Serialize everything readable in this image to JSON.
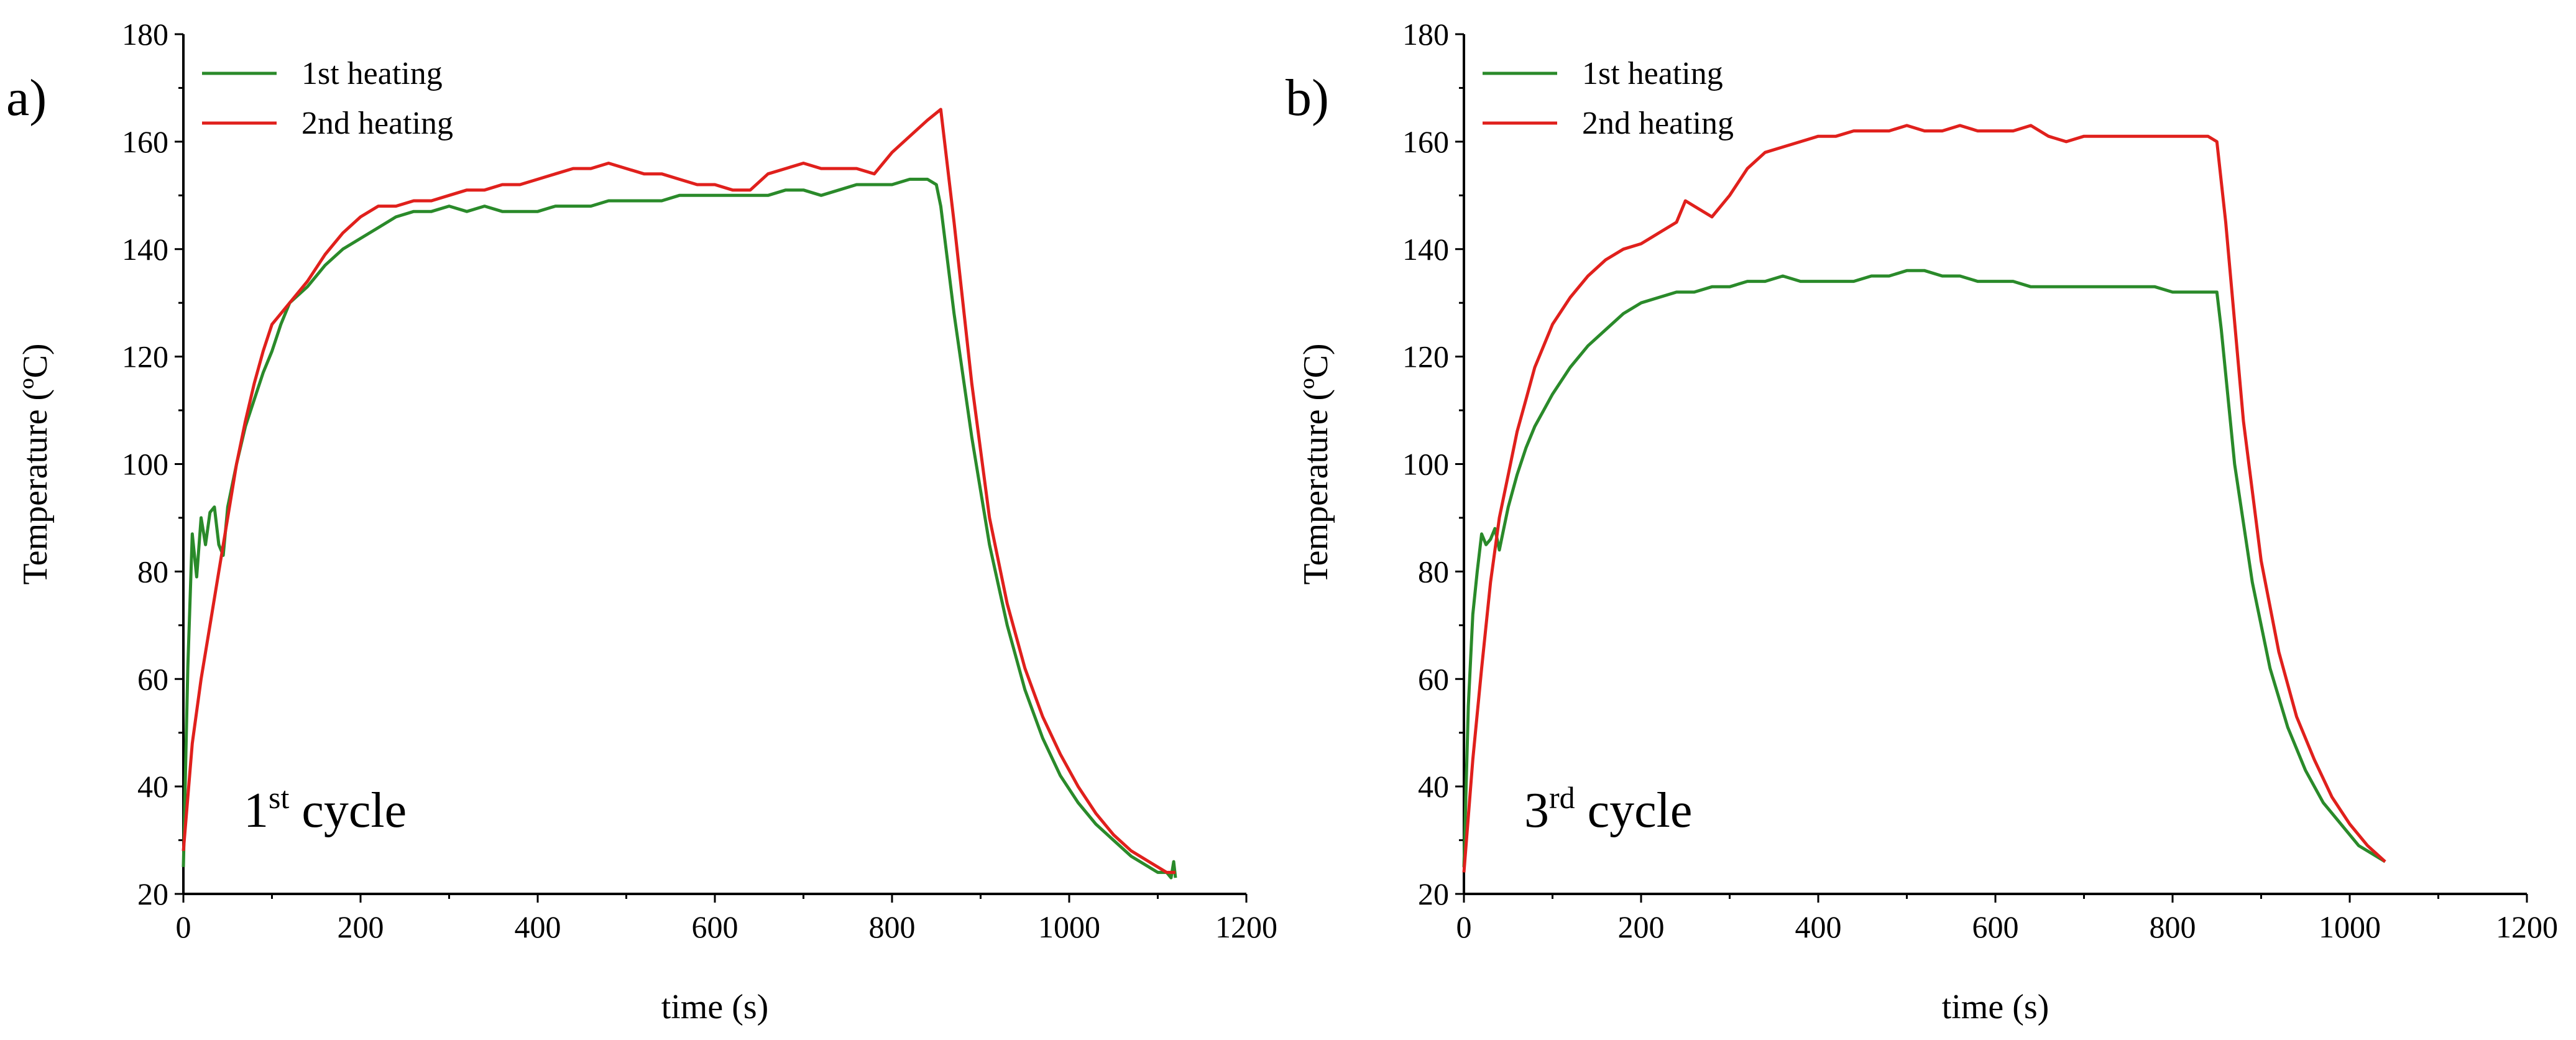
{
  "figure": {
    "panels": [
      {
        "label": "a)",
        "cycle_number": "1",
        "cycle_sup": "st",
        "cycle_word": " cycle"
      },
      {
        "label": "b)",
        "cycle_number": "3",
        "cycle_sup": "rd",
        "cycle_word": " cycle"
      }
    ]
  },
  "chart_data": [
    {
      "type": "line",
      "panel": "a)",
      "annotation": "1st cycle",
      "xlabel": "time (s)",
      "ylabel": "Temperature (ºC)",
      "xlim": [
        0,
        1200
      ],
      "ylim": [
        20,
        180
      ],
      "xticks": [
        0,
        200,
        400,
        600,
        800,
        1000,
        1200
      ],
      "yticks": [
        20,
        40,
        60,
        80,
        100,
        120,
        140,
        160,
        180
      ],
      "legend": "top-left",
      "series": [
        {
          "name": "1st heating",
          "color": "#2a8a2a",
          "x": [
            0,
            5,
            10,
            15,
            20,
            25,
            30,
            35,
            40,
            45,
            50,
            60,
            70,
            80,
            90,
            100,
            110,
            120,
            140,
            160,
            180,
            200,
            220,
            240,
            260,
            280,
            300,
            320,
            340,
            360,
            380,
            400,
            420,
            440,
            460,
            480,
            500,
            520,
            540,
            560,
            580,
            600,
            620,
            640,
            660,
            680,
            700,
            720,
            740,
            760,
            780,
            800,
            820,
            840,
            850,
            855,
            870,
            890,
            910,
            930,
            950,
            970,
            990,
            1010,
            1030,
            1050,
            1070,
            1090,
            1100,
            1110,
            1115,
            1118,
            1120
          ],
          "y": [
            25,
            62,
            87,
            79,
            90,
            85,
            91,
            92,
            85,
            83,
            92,
            100,
            107,
            112,
            117,
            121,
            126,
            130,
            133,
            137,
            140,
            142,
            144,
            146,
            147,
            147,
            148,
            147,
            148,
            147,
            147,
            147,
            148,
            148,
            148,
            149,
            149,
            149,
            149,
            150,
            150,
            150,
            150,
            150,
            150,
            151,
            151,
            150,
            151,
            152,
            152,
            152,
            153,
            153,
            152,
            148,
            128,
            105,
            85,
            70,
            58,
            49,
            42,
            37,
            33,
            30,
            27,
            25,
            24,
            24,
            23,
            26,
            23
          ]
        },
        {
          "name": "2nd heating",
          "color": "#e0201c",
          "x": [
            0,
            10,
            20,
            30,
            40,
            50,
            60,
            70,
            80,
            90,
            100,
            110,
            120,
            140,
            160,
            180,
            200,
            220,
            240,
            260,
            280,
            300,
            320,
            340,
            360,
            380,
            400,
            420,
            440,
            460,
            480,
            500,
            520,
            540,
            560,
            580,
            600,
            620,
            640,
            660,
            680,
            700,
            720,
            740,
            760,
            780,
            800,
            820,
            840,
            855,
            870,
            890,
            910,
            930,
            950,
            970,
            990,
            1010,
            1030,
            1050,
            1070,
            1090,
            1110,
            1120
          ],
          "y": [
            28,
            48,
            60,
            70,
            80,
            90,
            100,
            108,
            115,
            121,
            126,
            128,
            130,
            134,
            139,
            143,
            146,
            148,
            148,
            149,
            149,
            150,
            151,
            151,
            152,
            152,
            153,
            154,
            155,
            155,
            156,
            155,
            154,
            154,
            153,
            152,
            152,
            151,
            151,
            154,
            155,
            156,
            155,
            155,
            155,
            154,
            158,
            161,
            164,
            166,
            145,
            115,
            90,
            74,
            62,
            53,
            46,
            40,
            35,
            31,
            28,
            26,
            24,
            24
          ]
        }
      ]
    },
    {
      "type": "line",
      "panel": "b)",
      "annotation": "3rd cycle",
      "xlabel": "time (s)",
      "ylabel": "Temperature (ºC)",
      "xlim": [
        0,
        1200
      ],
      "ylim": [
        20,
        180
      ],
      "xticks": [
        0,
        200,
        400,
        600,
        800,
        1000,
        1200
      ],
      "yticks": [
        20,
        40,
        60,
        80,
        100,
        120,
        140,
        160,
        180
      ],
      "legend": "top-left",
      "series": [
        {
          "name": "1st heating",
          "color": "#2a8a2a",
          "x": [
            0,
            5,
            10,
            15,
            20,
            25,
            30,
            35,
            40,
            45,
            50,
            60,
            70,
            80,
            90,
            100,
            120,
            140,
            160,
            180,
            200,
            220,
            240,
            260,
            280,
            300,
            320,
            340,
            360,
            380,
            400,
            420,
            440,
            460,
            480,
            500,
            520,
            540,
            560,
            580,
            600,
            620,
            640,
            660,
            680,
            700,
            720,
            740,
            760,
            780,
            800,
            820,
            840,
            850,
            855,
            870,
            890,
            910,
            930,
            950,
            970,
            990,
            1010,
            1030,
            1040
          ],
          "y": [
            25,
            55,
            72,
            80,
            87,
            85,
            86,
            88,
            84,
            88,
            92,
            98,
            103,
            107,
            110,
            113,
            118,
            122,
            125,
            128,
            130,
            131,
            132,
            132,
            133,
            133,
            134,
            134,
            135,
            134,
            134,
            134,
            134,
            135,
            135,
            136,
            136,
            135,
            135,
            134,
            134,
            134,
            133,
            133,
            133,
            133,
            133,
            133,
            133,
            133,
            132,
            132,
            132,
            132,
            125,
            100,
            78,
            62,
            51,
            43,
            37,
            33,
            29,
            27,
            26
          ]
        },
        {
          "name": "2nd heating",
          "color": "#e0201c",
          "x": [
            0,
            10,
            20,
            30,
            40,
            50,
            60,
            70,
            80,
            90,
            100,
            120,
            140,
            160,
            180,
            200,
            220,
            240,
            250,
            260,
            280,
            300,
            320,
            340,
            360,
            380,
            400,
            420,
            440,
            460,
            480,
            500,
            520,
            540,
            560,
            580,
            600,
            620,
            640,
            660,
            680,
            700,
            720,
            740,
            760,
            780,
            800,
            820,
            840,
            850,
            860,
            880,
            900,
            920,
            940,
            960,
            980,
            1000,
            1020,
            1040
          ],
          "y": [
            24,
            45,
            62,
            78,
            90,
            98,
            106,
            112,
            118,
            122,
            126,
            131,
            135,
            138,
            140,
            141,
            143,
            145,
            149,
            148,
            146,
            150,
            155,
            158,
            159,
            160,
            161,
            161,
            162,
            162,
            162,
            163,
            162,
            162,
            163,
            162,
            162,
            162,
            163,
            161,
            160,
            161,
            161,
            161,
            161,
            161,
            161,
            161,
            161,
            160,
            145,
            108,
            82,
            65,
            53,
            45,
            38,
            33,
            29,
            26
          ]
        }
      ]
    }
  ]
}
